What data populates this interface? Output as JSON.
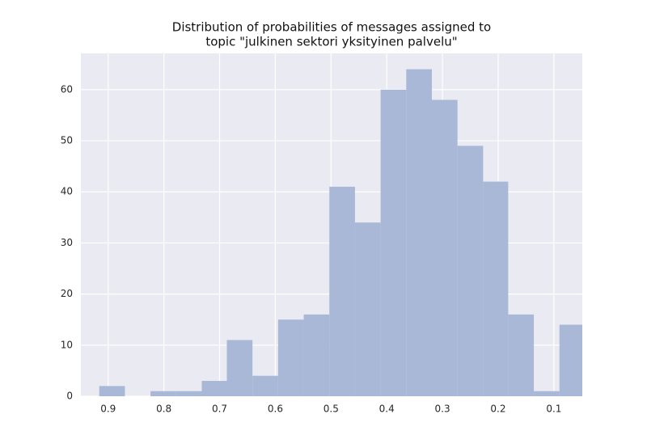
{
  "chart_data": {
    "type": "histogram",
    "title": [
      "Distribution of probabilities of messages assigned to",
      "topic \"julkinen sektori yksityinen palvelu\""
    ],
    "bins": [
      0.916,
      0.87,
      0.824,
      0.778,
      0.732,
      0.687,
      0.641,
      0.595,
      0.549,
      0.503,
      0.457,
      0.411,
      0.365,
      0.319,
      0.273,
      0.227,
      0.182,
      0.136,
      0.09,
      0.044
    ],
    "values": [
      2,
      0,
      1,
      1,
      3,
      11,
      4,
      15,
      16,
      41,
      34,
      60,
      64,
      58,
      49,
      42,
      16,
      1,
      14
    ],
    "color": "#a9b8d7",
    "xlim": [
      0.949,
      0.049
    ],
    "xticks": [
      0.9,
      0.8,
      0.7,
      0.6,
      0.5,
      0.4,
      0.3,
      0.2,
      0.1
    ],
    "ylim": [
      0,
      67.1
    ],
    "yticks": [
      0,
      10,
      20,
      30,
      40,
      50,
      60
    ],
    "grid": true
  }
}
